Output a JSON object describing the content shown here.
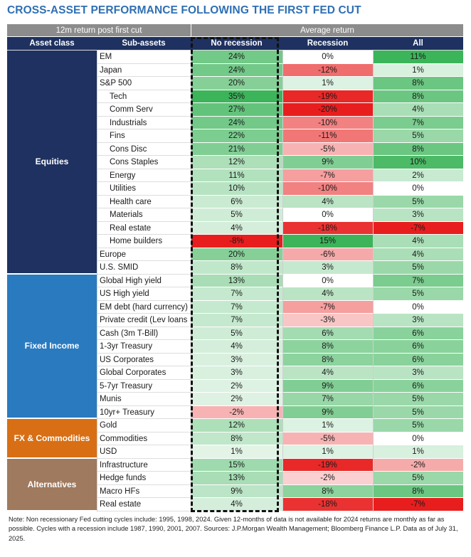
{
  "title": "CROSS-ASSET PERFORMANCE FOLLOWING THE FIRST FED CUT",
  "header": {
    "left_group": "12m return post first cut",
    "right_group": "Average return",
    "col_asset_class": "Asset class",
    "col_sub_assets": "Sub-assets",
    "col_no_recession": "No recession",
    "col_recession": "Recession",
    "col_all": "All"
  },
  "colors": {
    "equities": "#1e3160",
    "fixed_income": "#2a7ac0",
    "fx_commodities": "#d86f14",
    "alternatives": "#a07a5e",
    "positive_max": "#3cb45a",
    "negative_max": "#e81e1e"
  },
  "chart_data": {
    "type": "table",
    "title": "CROSS-ASSET PERFORMANCE FOLLOWING THE FIRST FED CUT",
    "columns": [
      "No recession",
      "Recession",
      "All"
    ],
    "groups": [
      {
        "name": "Equities",
        "rows": [
          {
            "label": "EM",
            "indent": false,
            "values": [
              24,
              0,
              11
            ]
          },
          {
            "label": "Japan",
            "indent": false,
            "values": [
              24,
              -12,
              1
            ]
          },
          {
            "label": "S&P 500",
            "indent": false,
            "values": [
              20,
              1,
              8
            ]
          },
          {
            "label": "Tech",
            "indent": true,
            "values": [
              35,
              -19,
              8
            ]
          },
          {
            "label": "Comm Serv",
            "indent": true,
            "values": [
              27,
              -20,
              4
            ]
          },
          {
            "label": "Industrials",
            "indent": true,
            "values": [
              24,
              -10,
              7
            ]
          },
          {
            "label": "Fins",
            "indent": true,
            "values": [
              22,
              -11,
              5
            ]
          },
          {
            "label": "Cons Disc",
            "indent": true,
            "values": [
              21,
              -5,
              8
            ]
          },
          {
            "label": "Cons Staples",
            "indent": true,
            "values": [
              12,
              9,
              10
            ]
          },
          {
            "label": "Energy",
            "indent": true,
            "values": [
              11,
              -7,
              2
            ]
          },
          {
            "label": "Utilities",
            "indent": true,
            "values": [
              10,
              -10,
              0
            ]
          },
          {
            "label": "Health care",
            "indent": true,
            "values": [
              6,
              4,
              5
            ]
          },
          {
            "label": "Materials",
            "indent": true,
            "values": [
              5,
              0,
              3
            ]
          },
          {
            "label": "Real estate",
            "indent": true,
            "values": [
              4,
              -18,
              -7
            ]
          },
          {
            "label": "Home builders",
            "indent": true,
            "values": [
              -8,
              15,
              4
            ]
          },
          {
            "label": "Europe",
            "indent": false,
            "values": [
              20,
              -6,
              4
            ]
          },
          {
            "label": "U.S. SMID",
            "indent": false,
            "values": [
              8,
              3,
              5
            ]
          }
        ]
      },
      {
        "name": "Fixed Income",
        "rows": [
          {
            "label": "Global High yield",
            "indent": false,
            "values": [
              13,
              0,
              7
            ]
          },
          {
            "label": "US High yield",
            "indent": false,
            "values": [
              7,
              4,
              5
            ]
          },
          {
            "label": "EM debt (hard currency)",
            "indent": false,
            "values": [
              7,
              -7,
              0
            ]
          },
          {
            "label": "Private credit (Lev loans",
            "indent": false,
            "values": [
              7,
              -3,
              3
            ]
          },
          {
            "label": "Cash (3m T-Bill)",
            "indent": false,
            "values": [
              5,
              6,
              6
            ]
          },
          {
            "label": "1-3yr Treasury",
            "indent": false,
            "values": [
              4,
              8,
              6
            ]
          },
          {
            "label": "US Corporates",
            "indent": false,
            "values": [
              3,
              8,
              6
            ]
          },
          {
            "label": "Global Corporates",
            "indent": false,
            "values": [
              3,
              4,
              3
            ]
          },
          {
            "label": "5-7yr Treasury",
            "indent": false,
            "values": [
              2,
              9,
              6
            ]
          },
          {
            "label": "Munis",
            "indent": false,
            "values": [
              2,
              7,
              5
            ]
          },
          {
            "label": "10yr+ Treasury",
            "indent": false,
            "values": [
              -2,
              9,
              5
            ]
          }
        ]
      },
      {
        "name": "FX & Commodities",
        "rows": [
          {
            "label": "Gold",
            "indent": false,
            "values": [
              12,
              1,
              5
            ]
          },
          {
            "label": "Commodities",
            "indent": false,
            "values": [
              8,
              -5,
              0
            ]
          },
          {
            "label": "USD",
            "indent": false,
            "values": [
              1,
              1,
              1
            ]
          }
        ]
      },
      {
        "name": "Alternatives",
        "rows": [
          {
            "label": "Infrastructure",
            "indent": false,
            "values": [
              15,
              -19,
              -2
            ]
          },
          {
            "label": "Hedge funds",
            "indent": false,
            "values": [
              13,
              -2,
              5
            ]
          },
          {
            "label": "Macro HFs",
            "indent": false,
            "values": [
              9,
              8,
              8
            ]
          },
          {
            "label": "Real estate",
            "indent": false,
            "values": [
              4,
              -18,
              -7
            ]
          }
        ]
      }
    ]
  },
  "note": "Note: Non recessionary Fed cutting cycles include: 1995, 1998, 2024. Given 12-months of data is not available for 2024 returns are monthly as far as possible. Cycles with a recession include 1987, 1990, 2001, 2007. Sources: J.P.Morgan Wealth Management; Bloomberg Finance L.P. Data as of July 31, 2025."
}
